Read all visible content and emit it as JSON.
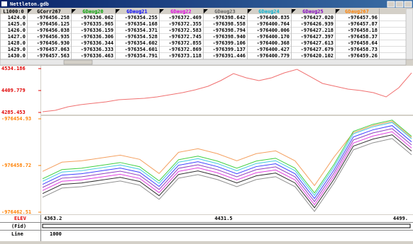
{
  "window": {
    "title": "Nettleton.gdb"
  },
  "table": {
    "headers": [
      "L1000:0",
      "GCorr267",
      "GDaug20",
      "GDaug21",
      "GDaug22",
      "GDaug23",
      "GDaug24",
      "GDaug25",
      "GDaug267"
    ],
    "header_colors": [
      "#000000",
      "#000000",
      "#00a000",
      "#0000ff",
      "#e000e0",
      "#606060",
      "#00b0d0",
      "#8000c0",
      "#ff8000"
    ],
    "rows": [
      [
        "1424.0",
        "-976456.258",
        "-976336.062",
        "-976354.255",
        "-976372.469",
        "-976398.642",
        "-976400.835",
        "-976427.020",
        "-976457.96"
      ],
      [
        "1425.0",
        "-976456.125",
        "-976335.965",
        "-976354.168",
        "-976372.355",
        "-976398.558",
        "-976400.764",
        "-976426.939",
        "-976457.87"
      ],
      [
        "1426.0",
        "-976456.038",
        "-976336.159",
        "-976354.371",
        "-976372.583",
        "-976398.794",
        "-976400.006",
        "-976427.218",
        "-976458.18"
      ],
      [
        "1427.0",
        "-976456.935",
        "-976336.306",
        "-976354.528",
        "-976372.745",
        "-976398.940",
        "-976400.170",
        "-976427.397",
        "-976458.37"
      ],
      [
        "1428.0",
        "-976456.930",
        "-976336.344",
        "-976354.602",
        "-976372.855",
        "-976399.106",
        "-976400.368",
        "-976427.613",
        "-976458.64"
      ],
      [
        "1429.0",
        "-976457.063",
        "-976336.333",
        "-976354.601",
        "-976372.869",
        "-976399.137",
        "-976400.427",
        "-976427.679",
        "-976458.73"
      ],
      [
        "1430.0",
        "-976457.563",
        "-976336.463",
        "-976354.791",
        "-976373.118",
        "-976391.446",
        "-976400.779",
        "-976420.102",
        "-976459.26"
      ]
    ]
  },
  "chart_data": [
    {
      "type": "line",
      "ylim": [
        4285.453,
        4534.186
      ],
      "yticks": [
        4534.186,
        4409.779,
        4285.453
      ],
      "tick_color": "#e00000",
      "series": [
        {
          "color": "#f07070",
          "values": [
            4289.5,
            4297.5,
            4317.5,
            4329.6,
            4337.6,
            4345.6,
            4357.7,
            4361.7,
            4365.7,
            4373.7,
            4385.8,
            4397.8,
            4413.8,
            4433.9,
            4466.0,
            4506.1,
            4482.0,
            4466.0,
            4482.0,
            4510.1,
            4530.0,
            4490.1,
            4450.0,
            4433.9,
            4417.9,
            4409.8,
            4397.8,
            4373.7,
            4425.9,
            4510.0
          ]
        }
      ]
    },
    {
      "type": "line",
      "ylim": [
        -976462.51,
        -976454.93
      ],
      "yticks": [
        -976454.93,
        -976458.72,
        -976462.51
      ],
      "tick_color": "#ff8000",
      "series": [
        {
          "color": "#f4a060",
          "values": [
            -976459.2,
            -976458.45,
            -976458.34,
            -976458.11,
            -976457.88,
            -976458.22,
            -976459.37,
            -976457.65,
            -976457.36,
            -976457.76,
            -976458.34,
            -976457.76,
            -976457.53,
            -976458.34,
            -976460.35,
            -976458.05,
            -976456.05,
            -976455.48,
            -976455.13,
            -976456.45
          ]
        },
        {
          "color": "#40d040",
          "values": [
            -976459.8,
            -976459.05,
            -976458.94,
            -976458.71,
            -976458.48,
            -976458.82,
            -976459.97,
            -976458.25,
            -976457.96,
            -976458.36,
            -976458.94,
            -976458.36,
            -976458.13,
            -976458.94,
            -976460.95,
            -976458.65,
            -976455.95,
            -976455.38,
            -976455.03,
            -976456.35
          ]
        },
        {
          "color": "#40c8e0",
          "values": [
            -976460.0,
            -976459.25,
            -976459.14,
            -976458.91,
            -976458.68,
            -976459.02,
            -976460.17,
            -976458.45,
            -976458.16,
            -976458.56,
            -976459.14,
            -976458.56,
            -976458.33,
            -976459.14,
            -976461.15,
            -976458.85,
            -976456.15,
            -976455.58,
            -976455.23,
            -976456.55
          ]
        },
        {
          "color": "#4040ff",
          "values": [
            -976460.25,
            -976459.5,
            -976459.39,
            -976459.16,
            -976458.93,
            -976459.27,
            -976460.42,
            -976458.7,
            -976458.41,
            -976458.81,
            -976459.39,
            -976458.81,
            -976458.58,
            -976459.39,
            -976461.4,
            -976459.1,
            -976456.4,
            -976455.83,
            -976455.48,
            -976456.8
          ]
        },
        {
          "color": "#9040c0",
          "values": [
            -976460.5,
            -976459.75,
            -976459.64,
            -976459.41,
            -976459.18,
            -976459.52,
            -976460.67,
            -976458.95,
            -976458.66,
            -976459.06,
            -976459.64,
            -976459.06,
            -976458.83,
            -976459.64,
            -976461.65,
            -976459.35,
            -976456.65,
            -976456.08,
            -976455.73,
            -976457.05
          ]
        },
        {
          "color": "#e040e0",
          "values": [
            -976460.75,
            -976460.0,
            -976459.89,
            -976459.66,
            -976459.43,
            -976459.77,
            -976460.92,
            -976459.2,
            -976458.91,
            -976459.31,
            -976459.89,
            -976459.31,
            -976459.08,
            -976459.89,
            -976461.9,
            -976459.6,
            -976456.9,
            -976456.33,
            -976455.98,
            -976457.3
          ]
        },
        {
          "color": "#303030",
          "values": [
            -976461.0,
            -976460.25,
            -976460.14,
            -976459.91,
            -976459.68,
            -976460.02,
            -976461.17,
            -976459.45,
            -976459.16,
            -976459.56,
            -976460.14,
            -976459.56,
            -976459.33,
            -976460.14,
            -976462.15,
            -976459.85,
            -976457.15,
            -976456.58,
            -976456.23,
            -976457.55
          ]
        },
        {
          "color": "#909090",
          "values": [
            -976461.3,
            -976460.55,
            -976460.44,
            -976460.21,
            -976459.98,
            -976460.32,
            -976461.47,
            -976459.75,
            -976459.46,
            -976459.86,
            -976460.44,
            -976459.86,
            -976459.63,
            -976460.44,
            -976462.45,
            -976460.15,
            -976457.45,
            -976456.88,
            -976456.53,
            -976457.85
          ]
        }
      ]
    }
  ],
  "footer": {
    "channel": "ELEV",
    "ticks": [
      "4363.2",
      "4431.5",
      "4499."
    ],
    "fid": "(Fid)",
    "line_label": "Line",
    "line_value": "1000"
  }
}
